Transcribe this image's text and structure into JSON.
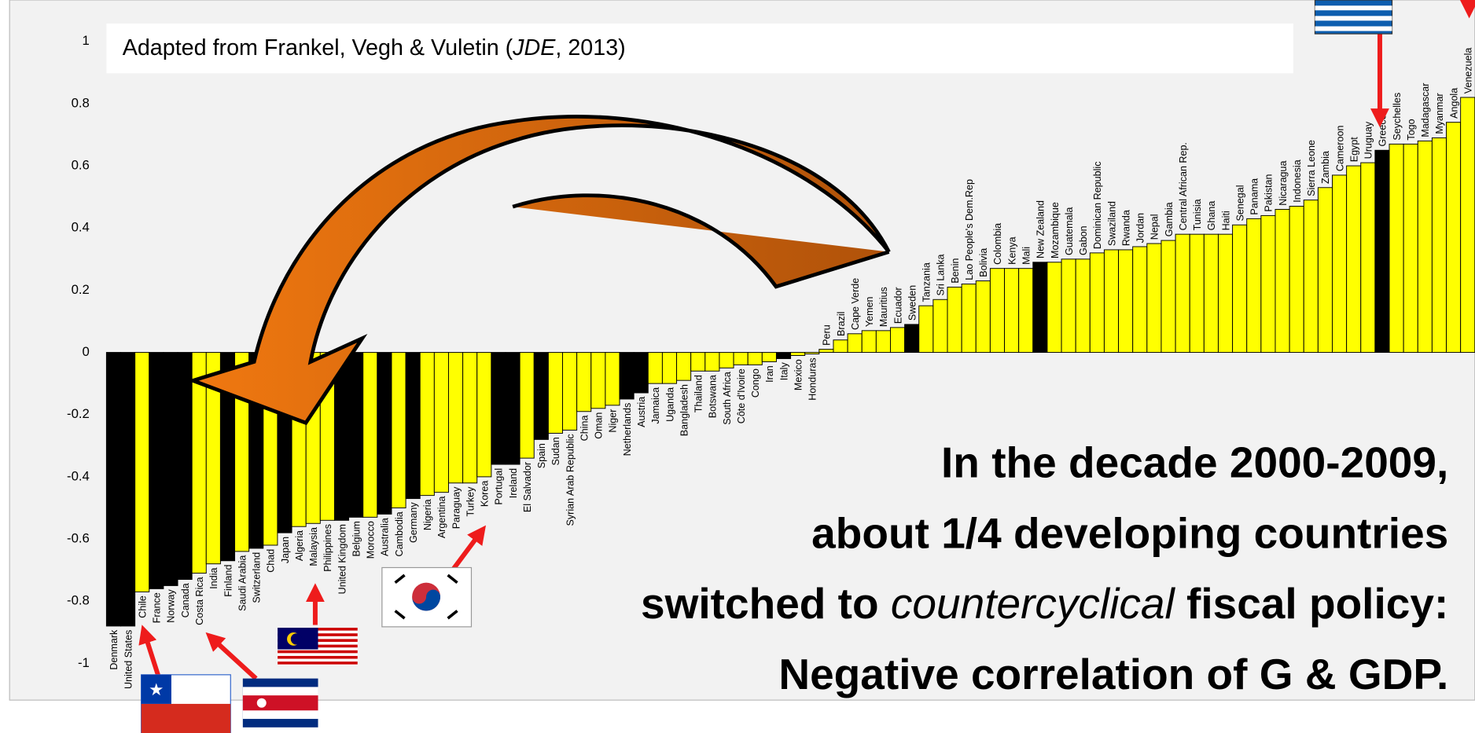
{
  "chart_data": {
    "type": "bar",
    "source_parts": [
      "Adapted from Frankel, Vegh & Vuletin (",
      "JDE",
      ", 2013)"
    ],
    "annotation_lines": [
      [
        "In the decade 2000-2009,"
      ],
      [
        "about 1/4 developing countries"
      ],
      [
        "switched to ",
        "countercyclical",
        " fiscal policy:"
      ],
      [
        "Negative correlation of G & GDP."
      ]
    ],
    "categories": [
      "Denmark",
      "United States",
      "Chile",
      "France",
      "Norway",
      "Canada",
      "Costa Rica",
      "India",
      "Finland",
      "Saudi Arabia",
      "Switzerland",
      "Chad",
      "Japan",
      "Algeria",
      "Malaysia",
      "Philippines",
      "United Kingdom",
      "Belgium",
      "Morocco",
      "Australia",
      "Cambodia",
      "Germany",
      "Nigeria",
      "Argentina",
      "Paraguay",
      "Turkey",
      "Korea",
      "Portugal",
      "Ireland",
      "El Salvador",
      "Spain",
      "Sudan",
      "Syrian Arab Republic",
      "China",
      "Oman",
      "Niger",
      "Netherlands",
      "Austria",
      "Jamaica",
      "Uganda",
      "Bangladesh",
      "Thailand",
      "Botswana",
      "South Africa",
      "Côte d'Ivoire",
      "Congo",
      "Iran",
      "Italy",
      "Mexico",
      "Honduras",
      "Peru",
      "Brazil",
      "Cape Verde",
      "Yemen",
      "Mauritius",
      "Ecuador",
      "Sweden",
      "Tanzania",
      "Sri Lanka",
      "Benin",
      "Lao People's Dem.Rep",
      "Bolivia",
      "Colombia",
      "Kenya",
      "Mali",
      "New Zealand",
      "Mozambique",
      "Guatemala",
      "Gabon",
      "Dominican Republic",
      "Swaziland",
      "Rwanda",
      "Jordan",
      "Nepal",
      "Gambia",
      "Central African Rep.",
      "Tunisia",
      "Ghana",
      "Haiti",
      "Senegal",
      "Panama",
      "Pakistan",
      "Nicaragua",
      "Indonesia",
      "Sierra Leone",
      "Zambia",
      "Cameroon",
      "Egypt",
      "Uruguay",
      "Greece",
      "Seychelles",
      "Togo",
      "Madagascar",
      "Myanmar",
      "Angola",
      "Venezuela"
    ],
    "values": [
      -0.88,
      -0.88,
      -0.77,
      -0.76,
      -0.75,
      -0.73,
      -0.71,
      -0.68,
      -0.67,
      -0.64,
      -0.63,
      -0.62,
      -0.58,
      -0.56,
      -0.55,
      -0.54,
      -0.54,
      -0.53,
      -0.53,
      -0.52,
      -0.5,
      -0.47,
      -0.46,
      -0.45,
      -0.42,
      -0.42,
      -0.4,
      -0.36,
      -0.36,
      -0.34,
      -0.28,
      -0.26,
      -0.25,
      -0.19,
      -0.18,
      -0.17,
      -0.15,
      -0.13,
      -0.1,
      -0.1,
      -0.09,
      -0.06,
      -0.06,
      -0.05,
      -0.04,
      -0.04,
      -0.03,
      -0.02,
      -0.01,
      -0.005,
      0.01,
      0.04,
      0.06,
      0.07,
      0.07,
      0.08,
      0.09,
      0.15,
      0.17,
      0.21,
      0.22,
      0.23,
      0.27,
      0.27,
      0.27,
      0.29,
      0.29,
      0.3,
      0.3,
      0.32,
      0.33,
      0.33,
      0.34,
      0.35,
      0.36,
      0.38,
      0.38,
      0.38,
      0.38,
      0.41,
      0.43,
      0.44,
      0.46,
      0.47,
      0.49,
      0.53,
      0.57,
      0.6,
      0.61,
      0.65,
      0.67,
      0.67,
      0.68,
      0.69,
      0.74,
      0.82
    ],
    "colors": [
      "#000000",
      "#000000",
      "#ffff00",
      "#000000",
      "#000000",
      "#000000",
      "#ffff00",
      "#ffff00",
      "#000000",
      "#ffff00",
      "#000000",
      "#ffff00",
      "#000000",
      "#ffff00",
      "#ffff00",
      "#ffff00",
      "#000000",
      "#000000",
      "#ffff00",
      "#000000",
      "#ffff00",
      "#000000",
      "#ffff00",
      "#ffff00",
      "#ffff00",
      "#ffff00",
      "#ffff00",
      "#000000",
      "#000000",
      "#ffff00",
      "#000000",
      "#ffff00",
      "#ffff00",
      "#ffff00",
      "#ffff00",
      "#ffff00",
      "#000000",
      "#000000",
      "#ffff00",
      "#ffff00",
      "#ffff00",
      "#ffff00",
      "#ffff00",
      "#ffff00",
      "#ffff00",
      "#ffff00",
      "#ffff00",
      "#000000",
      "#ffff00",
      "#ffff00",
      "#ffff00",
      "#ffff00",
      "#ffff00",
      "#ffff00",
      "#ffff00",
      "#ffff00",
      "#000000",
      "#ffff00",
      "#ffff00",
      "#ffff00",
      "#ffff00",
      "#ffff00",
      "#ffff00",
      "#ffff00",
      "#ffff00",
      "#000000",
      "#ffff00",
      "#ffff00",
      "#ffff00",
      "#ffff00",
      "#ffff00",
      "#ffff00",
      "#ffff00",
      "#ffff00",
      "#ffff00",
      "#ffff00",
      "#ffff00",
      "#ffff00",
      "#ffff00",
      "#ffff00",
      "#ffff00",
      "#ffff00",
      "#ffff00",
      "#ffff00",
      "#ffff00",
      "#ffff00",
      "#ffff00",
      "#ffff00",
      "#ffff00",
      "#000000",
      "#ffff00",
      "#ffff00",
      "#ffff00",
      "#ffff00",
      "#ffff00",
      "#ffff00"
    ],
    "ylim": [
      -1.1,
      1.1
    ],
    "yticks": [
      1,
      0.8,
      0.6,
      0.4,
      0.2,
      0,
      -0.2,
      -0.4,
      -0.6,
      -0.8,
      -1
    ]
  }
}
